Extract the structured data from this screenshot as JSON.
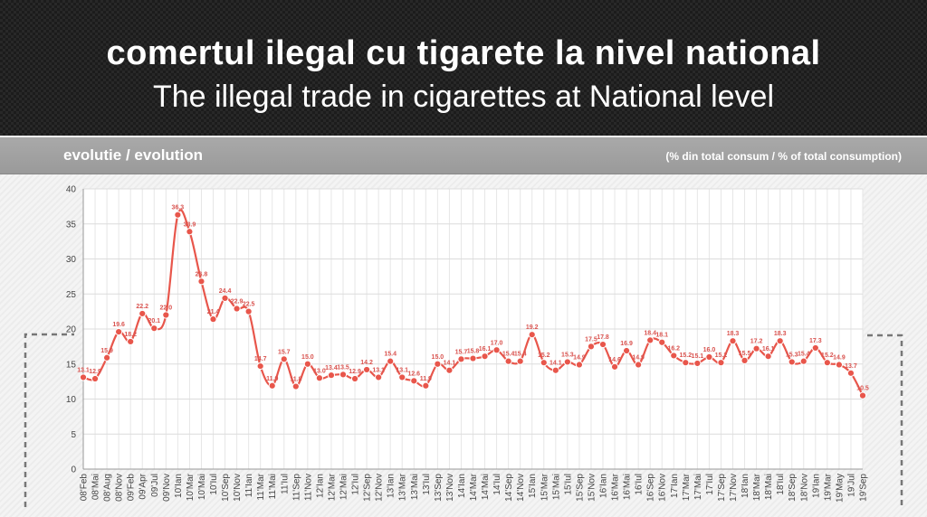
{
  "header": {
    "title": "comertul ilegal cu tigarete la nivel national",
    "subtitle": "The illegal trade in cigarettes at National level"
  },
  "bar": {
    "left_label": "evolutie / evolution",
    "right_label": "(% din total consum / % of total consumption)"
  },
  "colors": {
    "line": "#e8564b",
    "bar": "#a0a0a0",
    "header": "#1c1c1c"
  },
  "chart_data": {
    "type": "line",
    "title": "",
    "xlabel": "",
    "ylabel": "",
    "ylim": [
      0,
      40
    ],
    "yticks": [
      0,
      5,
      10,
      15,
      20,
      25,
      30,
      35,
      40
    ],
    "grid": true,
    "categories": [
      "08'Feb",
      "08'Mai",
      "08'Aug",
      "08'Nov",
      "09'Feb",
      "09'Apr",
      "09'Jul",
      "09'Nov",
      "10'Ian",
      "10'Mar",
      "10'Mai",
      "10'Iul",
      "10'Sep",
      "10'Nov",
      "11'Ian",
      "11'Mar",
      "11'Mai",
      "11'Iul",
      "11'Sep",
      "11'Nov",
      "12'Ian",
      "12'Mar",
      "12'Mai",
      "12'Iul",
      "12'Sep",
      "12'Nov",
      "13'Ian",
      "13'Mar",
      "13'Mai",
      "13'Iul",
      "13'Sep",
      "13'Nov",
      "14'Ian",
      "14'Mar",
      "14'Mai",
      "14'Iul",
      "14'Sep",
      "14'Nov",
      "15'Ian",
      "15'Mar",
      "15'Mai",
      "15'Iul",
      "15'Sep",
      "15'Nov",
      "16'Ian",
      "16'Mar",
      "16'Mai",
      "16'Iul",
      "16'Sep",
      "16'Nov",
      "17'Ian",
      "17'Mar",
      "17'Mai",
      "17'Iul",
      "17'Sep",
      "17'Nov",
      "18'Ian",
      "18'Mar",
      "18'Mai",
      "18'Iul",
      "18'Sep",
      "18'Nov",
      "19'Ian",
      "19'Mar",
      "19'May",
      "19'Jul",
      "19'Sep"
    ],
    "series": [
      {
        "values": [
          13.1,
          12.9,
          15.9,
          19.6,
          18.2,
          22.2,
          20.1,
          22.0,
          36.3,
          33.9,
          26.8,
          21.4,
          24.4,
          22.9,
          22.5,
          14.7,
          11.9,
          15.7,
          11.8,
          15.0,
          13.0,
          13.4,
          13.5,
          12.9,
          14.2,
          13.1,
          15.4,
          13.1,
          12.6,
          11.9,
          15.0,
          14.1,
          15.7,
          15.8,
          16.1,
          17.0,
          15.4,
          15.4,
          19.2,
          15.2,
          14.1,
          15.3,
          14.9,
          17.5,
          17.8,
          14.6,
          16.9,
          14.9,
          18.4,
          18.1,
          16.2,
          15.2,
          15.1,
          16.0,
          15.2,
          18.3,
          15.5,
          17.2,
          16.1,
          18.3,
          15.3,
          15.4,
          17.3,
          15.2,
          14.9,
          13.7,
          10.5
        ],
        "labels": [
          "13.1",
          "12.9",
          "15.9",
          "19.6",
          "18.2",
          "22.2",
          "20.1",
          "22.0",
          "36.3",
          "33.9",
          "26.8",
          "21.4",
          "24.4",
          "22.9",
          "22.5",
          "14.7",
          "11.9",
          "15.7",
          "11.8",
          "15.0",
          "13.0",
          "13.4",
          "13.5",
          "12.9",
          "14.2",
          "13.1",
          "15.4",
          "13.1",
          "12.6",
          "11.9",
          "15.0",
          "14.1",
          "15.7",
          "15.8",
          "16.1",
          "17.0",
          "15.4",
          "15.4",
          "19.2",
          "15.2",
          "14.1",
          "15.3",
          "14.9",
          "17.5",
          "17.8",
          "14.6",
          "16.9",
          "14.9",
          "18.4",
          "18.1",
          "16.2",
          "15.2",
          "15.1",
          "16.0",
          "15.2",
          "18.3",
          "15.5",
          "17.2",
          "16.1",
          "18.3",
          "15.3",
          "15.4",
          "17.3",
          "15.2",
          "14.9",
          "13.7",
          "10.5"
        ]
      }
    ]
  }
}
